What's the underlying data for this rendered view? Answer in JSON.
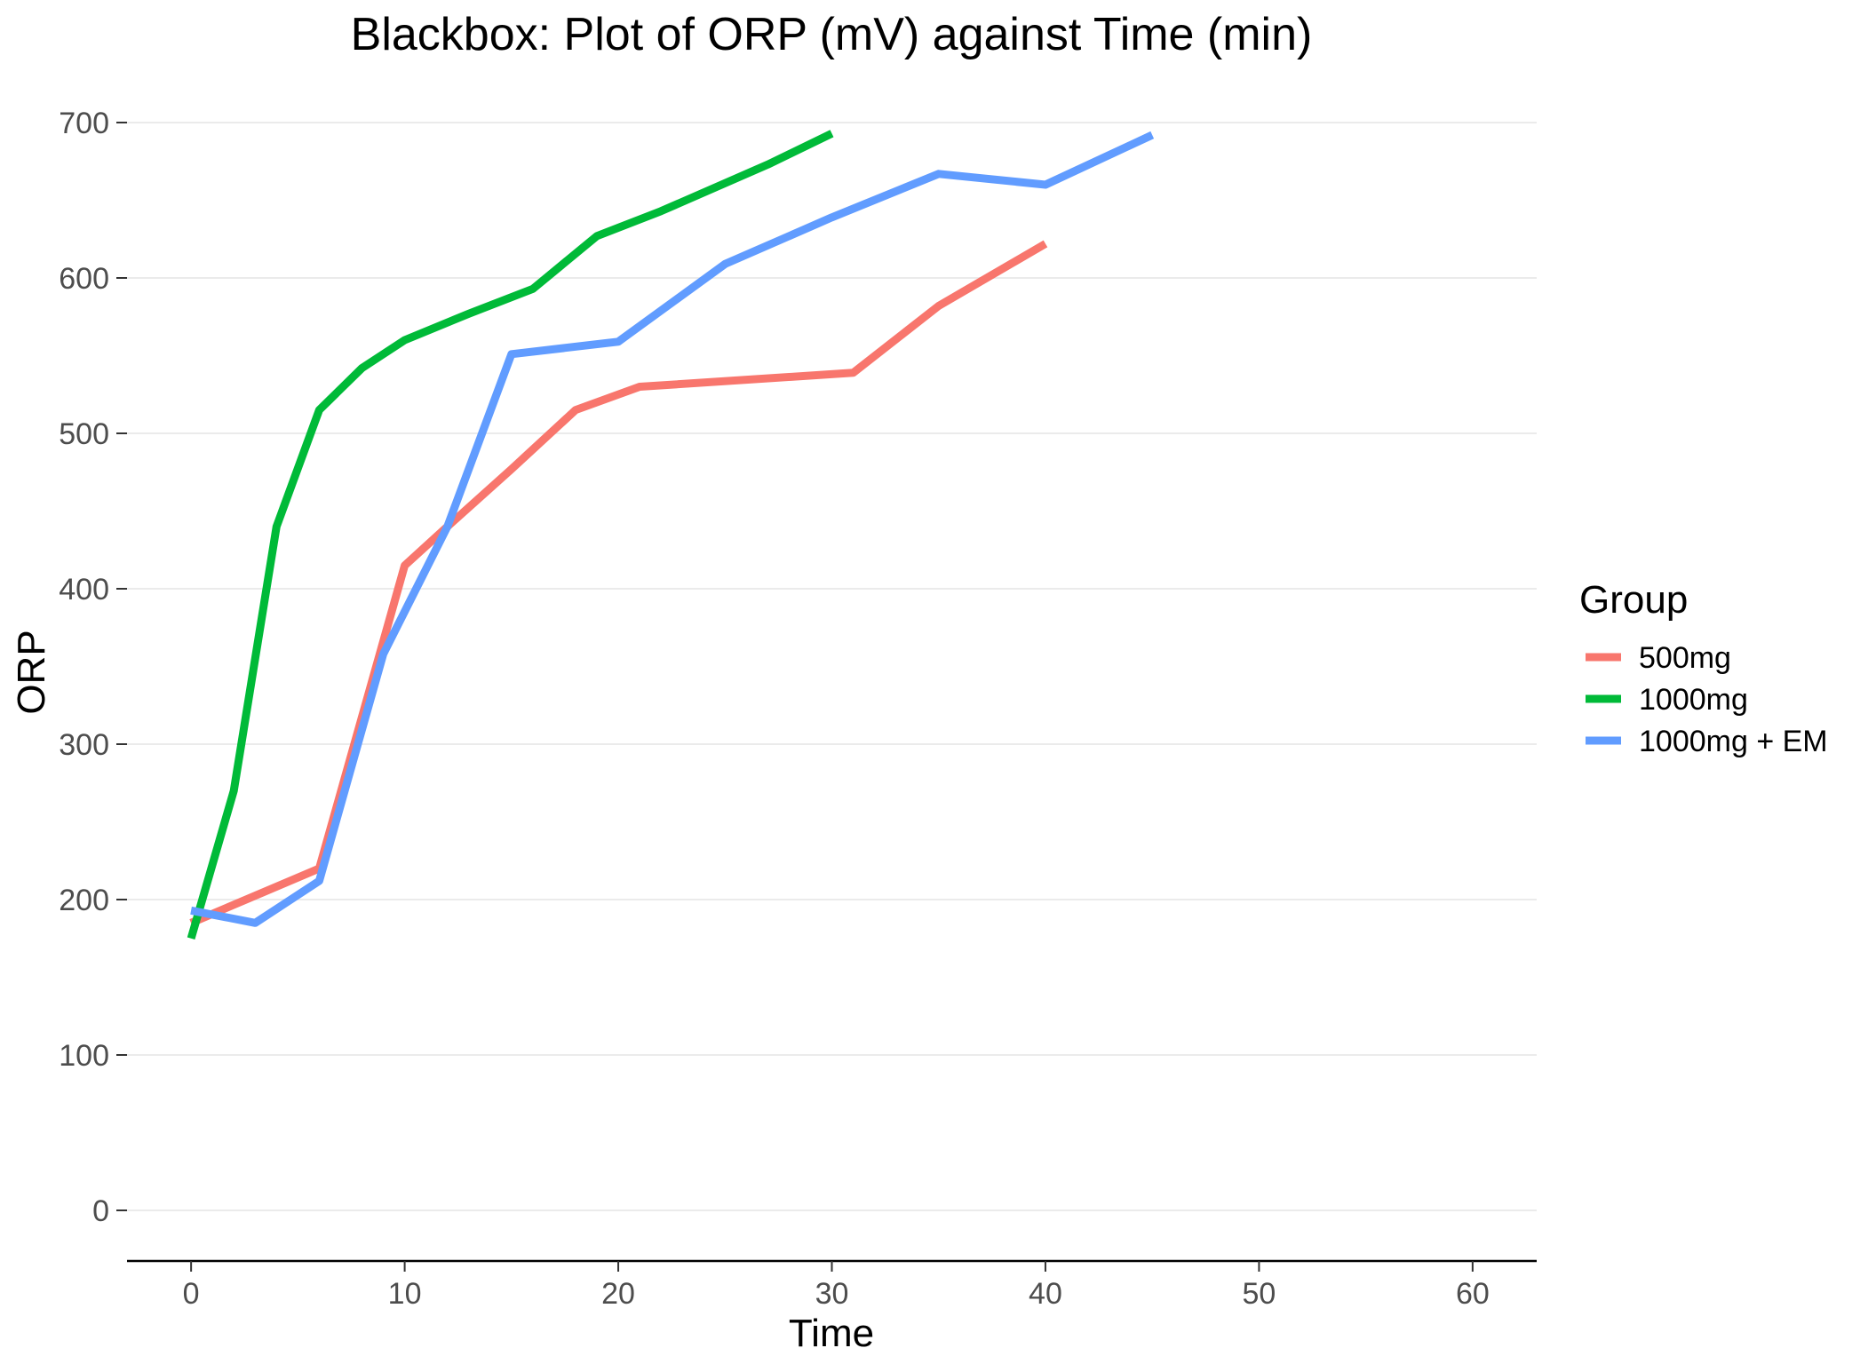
{
  "chart_data": {
    "type": "line",
    "title": "Blackbox: Plot of ORP (mV) against Time (min)",
    "xlabel": "Time",
    "ylabel": "ORP",
    "xlim": [
      -3,
      63
    ],
    "ylim": [
      -33,
      700
    ],
    "x_ticks": [
      0,
      10,
      20,
      30,
      40,
      50,
      60
    ],
    "y_ticks": [
      0,
      100,
      200,
      300,
      400,
      500,
      600,
      700
    ],
    "grid": "horizontal major",
    "legend": {
      "title": "Group",
      "position": "right"
    },
    "series": [
      {
        "name": "500mg",
        "color": "#F8766D",
        "points": [
          [
            0,
            185
          ],
          [
            6,
            220
          ],
          [
            10,
            415
          ],
          [
            12,
            440
          ],
          [
            15,
            477
          ],
          [
            18,
            515
          ],
          [
            21,
            530
          ],
          [
            31,
            539
          ],
          [
            35,
            582
          ],
          [
            40,
            622
          ]
        ]
      },
      {
        "name": "1000mg",
        "color": "#00BA38",
        "points": [
          [
            0,
            175
          ],
          [
            2,
            270
          ],
          [
            4,
            440
          ],
          [
            6,
            515
          ],
          [
            8,
            542
          ],
          [
            10,
            560
          ],
          [
            13,
            577
          ],
          [
            16,
            593
          ],
          [
            19,
            627
          ],
          [
            22,
            643
          ],
          [
            27,
            673
          ],
          [
            30,
            693
          ]
        ]
      },
      {
        "name": "1000mg + EM",
        "color": "#619CFF",
        "points": [
          [
            0,
            193
          ],
          [
            3,
            185
          ],
          [
            6,
            212
          ],
          [
            9,
            358
          ],
          [
            12,
            440
          ],
          [
            15,
            551
          ],
          [
            20,
            559
          ],
          [
            25,
            609
          ],
          [
            30,
            639
          ],
          [
            35,
            667
          ],
          [
            40,
            660
          ],
          [
            45,
            692
          ]
        ]
      }
    ]
  }
}
